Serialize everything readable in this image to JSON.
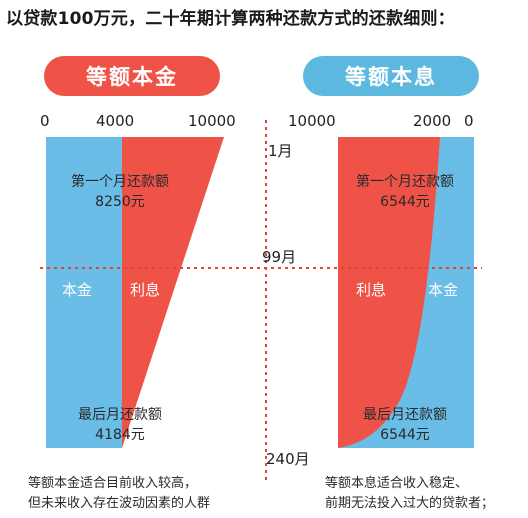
{
  "title": "以贷款100万元，二十年期计算两种还款方式的还款细则：",
  "left_panel": {
    "pill": "等额本金",
    "axis_ticks": [
      "0",
      "4000",
      "10000"
    ],
    "first_month_label": "第一个月还款额",
    "first_month_value": "8250元",
    "principal_label": "本金",
    "interest_label": "利息",
    "last_month_label": "最后月还款额",
    "last_month_value": "4184元",
    "note_line1": "等额本金适合目前收入较高，",
    "note_line2": "但未来收入存在波动因素的人群",
    "colors": {
      "principal": "#69bde6",
      "interest": "#ef5348"
    }
  },
  "right_panel": {
    "pill": "等额本息",
    "axis_ticks": [
      "10000",
      "2000",
      "0"
    ],
    "first_month_label": "第一个月还款额",
    "first_month_value": "6544元",
    "interest_label": "利息",
    "principal_label": "本金",
    "last_month_label": "最后月还款额",
    "last_month_value": "6544元",
    "note_line1": "等额本息适合收入稳定、",
    "note_line2": "前期无法投入过大的贷款者；",
    "colors": {
      "principal": "#69bde6",
      "interest": "#ef5348"
    }
  },
  "months": {
    "first": "1月",
    "middle": "99月",
    "last": "240月"
  }
}
